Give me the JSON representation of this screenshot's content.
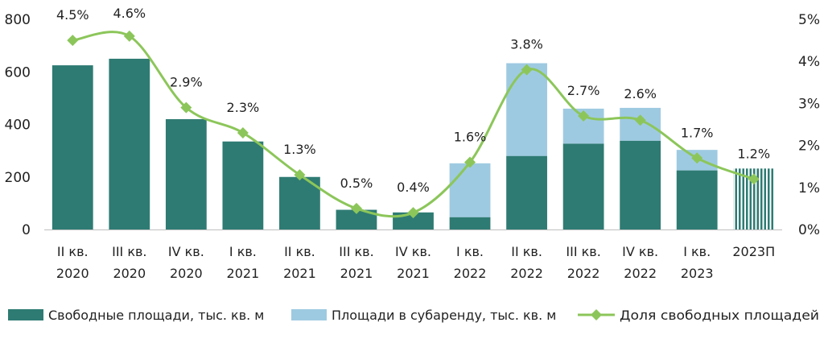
{
  "chart_data": {
    "type": "bar",
    "title": "",
    "categories": [
      [
        "II кв.",
        "2020"
      ],
      [
        "III кв.",
        "2020"
      ],
      [
        "IV кв.",
        "2020"
      ],
      [
        "I кв.",
        "2021"
      ],
      [
        "II кв.",
        "2021"
      ],
      [
        "III кв.",
        "2021"
      ],
      [
        "IV кв.",
        "2021"
      ],
      [
        "I кв.",
        "2022"
      ],
      [
        "II кв.",
        "2022"
      ],
      [
        "III кв.",
        "2022"
      ],
      [
        "IV кв.",
        "2022"
      ],
      [
        "I кв.",
        "2023"
      ],
      [
        "2023П",
        ""
      ]
    ],
    "series": [
      {
        "name": "Свободные площади, тыс. кв. м",
        "kind": "stacked-bar",
        "axis": "left",
        "color": "#2e7b73",
        "values": [
          625,
          650,
          420,
          335,
          200,
          75,
          65,
          47,
          280,
          327,
          338,
          225,
          232
        ]
      },
      {
        "name": "Площади в субаренду, тыс. кв. м",
        "kind": "stacked-bar",
        "axis": "left",
        "color": "#9ecae1",
        "values": [
          0,
          0,
          0,
          0,
          0,
          0,
          0,
          205,
          353,
          133,
          125,
          78,
          0
        ]
      },
      {
        "name": "Доля свободных площадей",
        "kind": "line",
        "axis": "right",
        "color": "#8cc65a",
        "values": [
          4.5,
          4.6,
          2.9,
          2.3,
          1.3,
          0.5,
          0.4,
          1.6,
          3.8,
          2.7,
          2.6,
          1.7,
          1.2
        ],
        "labels": [
          "4.5%",
          "4.6%",
          "2.9%",
          "2.3%",
          "1.3%",
          "0.5%",
          "0.4%",
          "1.6%",
          "3.8%",
          "2.7%",
          "2.6%",
          "1.7%",
          "1.2%"
        ]
      }
    ],
    "forecast_index": 12,
    "y_left": {
      "min": 0,
      "max": 800,
      "ticks": [
        "0",
        "200",
        "400",
        "600",
        "800"
      ]
    },
    "y_right": {
      "min": 0,
      "max": 5,
      "ticks": [
        "0%",
        "1%",
        "2%",
        "3%",
        "4%",
        "5%"
      ]
    },
    "grid": false,
    "legend": "bottom"
  }
}
